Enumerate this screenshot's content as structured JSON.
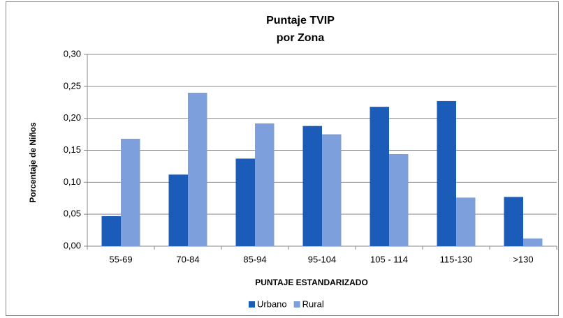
{
  "chart_data": {
    "type": "bar",
    "title": "Puntaje TVIP",
    "subtitle": "por Zona",
    "x_label": "PUNTAJE ESTANDARIZADO",
    "y_label": "Porcentaje de Niños",
    "categories": [
      "55-69",
      "70-84",
      "85-94",
      "95-104",
      "105 - 114",
      "115-130",
      ">130"
    ],
    "series": [
      {
        "name": "Urbano",
        "color": "#1a5cb8",
        "values": [
          0.047,
          0.112,
          0.137,
          0.188,
          0.218,
          0.227,
          0.077
        ]
      },
      {
        "name": "Rural",
        "color": "#7d9fdb",
        "values": [
          0.168,
          0.24,
          0.192,
          0.175,
          0.144,
          0.076,
          0.012
        ]
      }
    ],
    "ylim": [
      0,
      0.3
    ],
    "yticks": [
      {
        "value": 0,
        "label": "0,00"
      },
      {
        "value": 0.05,
        "label": "0,05"
      },
      {
        "value": 0.1,
        "label": "0,10"
      },
      {
        "value": 0.15,
        "label": "0,15"
      },
      {
        "value": 0.2,
        "label": "0,20"
      },
      {
        "value": 0.25,
        "label": "0,25"
      },
      {
        "value": 0.3,
        "label": "0,30"
      }
    ],
    "grid": true,
    "legend": "bottom"
  }
}
